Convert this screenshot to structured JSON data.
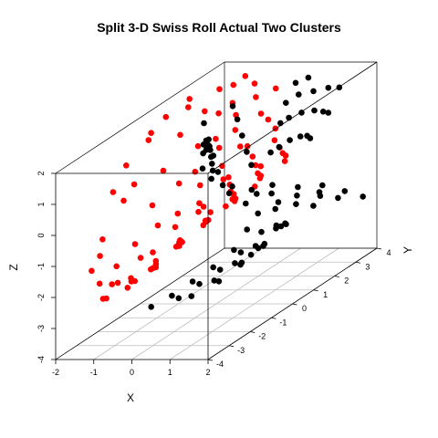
{
  "chart_data": {
    "type": "scatter",
    "projection": "3d-box",
    "title": "Split 3-D Swiss Roll Actual Two Clusters",
    "xlabel": "X",
    "ylabel": "Y",
    "zlabel": "Z",
    "xlim": [
      -2,
      2
    ],
    "ylim": [
      -4,
      4
    ],
    "zlim": [
      -4,
      2
    ],
    "x_ticks": [
      "-2",
      "-1",
      "0",
      "1",
      "2"
    ],
    "y_ticks": [
      "-4",
      "-3",
      "-2",
      "-1",
      "0",
      "1",
      "2",
      "3",
      "4"
    ],
    "z_ticks": [
      "-4",
      "-3",
      "-2",
      "-1",
      "0",
      "1",
      "2"
    ],
    "grid": "floor (x-y plane)",
    "legend": "none",
    "colors": {
      "cluster_1": "#ff0000",
      "cluster_2": "#000000",
      "box": "#000000",
      "grid": "#bebebe"
    },
    "series": [
      {
        "color": "#ff0000",
        "points": [
          [
            -1.6,
            -1.5,
            0.0
          ],
          [
            -1.6,
            -2.5,
            -0.8
          ],
          [
            -1.5,
            -3.2,
            -1.5
          ],
          [
            -1.6,
            -2.0,
            0.5
          ],
          [
            -1.7,
            -1.2,
            1.0
          ],
          [
            -1.5,
            -0.5,
            1.5
          ],
          [
            -1.6,
            0.5,
            1.8
          ],
          [
            -1.4,
            1.2,
            1.8
          ],
          [
            -1.5,
            -2.8,
            -1.2
          ],
          [
            -1.6,
            -1.0,
            0.3
          ],
          [
            -1.6,
            -0.2,
            1.6
          ],
          [
            -1.7,
            1.8,
            1.8
          ],
          [
            -1.4,
            -3.0,
            -2.0
          ],
          [
            -1.4,
            -2.2,
            -1.8
          ],
          [
            -1.3,
            -1.5,
            -1.4
          ],
          [
            -1.4,
            -0.5,
            -0.6
          ],
          [
            -1.5,
            0.2,
            0.2
          ],
          [
            -1.5,
            1.0,
            1.0
          ],
          [
            -1.3,
            1.8,
            1.4
          ],
          [
            -1.3,
            2.5,
            1.8
          ],
          [
            -1.2,
            -3.2,
            -2.4
          ],
          [
            -1.2,
            -2.5,
            -2.2
          ],
          [
            -1.1,
            -1.6,
            -1.8
          ],
          [
            -1.2,
            -0.6,
            -1.2
          ],
          [
            -1.2,
            0.4,
            -0.3
          ],
          [
            -1.2,
            1.3,
            0.5
          ],
          [
            -1.1,
            2.1,
            1.2
          ],
          [
            -1.1,
            2.8,
            1.8
          ],
          [
            -1.0,
            -3.4,
            -2.3
          ],
          [
            -0.9,
            -2.4,
            -2.2
          ],
          [
            -1.0,
            -1.2,
            -1.8
          ],
          [
            -0.9,
            -0.2,
            -1.0
          ],
          [
            -1.0,
            0.8,
            -0.1
          ],
          [
            -0.9,
            1.6,
            0.6
          ],
          [
            -0.9,
            2.4,
            1.4
          ],
          [
            -0.9,
            3.0,
            2.0
          ],
          [
            -0.8,
            -3.5,
            -1.8
          ],
          [
            -0.7,
            -2.6,
            -2.1
          ],
          [
            -0.7,
            -1.6,
            -1.9
          ],
          [
            -0.8,
            -0.5,
            -1.3
          ],
          [
            -0.7,
            0.5,
            -0.4
          ],
          [
            -0.7,
            1.4,
            0.4
          ],
          [
            -0.7,
            2.2,
            1.1
          ],
          [
            -0.6,
            2.9,
            1.8
          ],
          [
            -0.5,
            -3.3,
            -2.0
          ],
          [
            -0.5,
            -2.2,
            -1.9
          ],
          [
            -0.4,
            -1.0,
            -1.5
          ],
          [
            -0.5,
            0.1,
            -0.8
          ],
          [
            -0.4,
            1.0,
            0.0
          ],
          [
            -0.5,
            1.8,
            0.8
          ],
          [
            -0.4,
            2.6,
            1.5
          ],
          [
            -0.3,
            -3.5,
            -1.6
          ],
          [
            -0.2,
            -2.5,
            -1.7
          ],
          [
            -0.2,
            -1.4,
            -1.4
          ],
          [
            -0.3,
            -0.3,
            -0.9
          ],
          [
            -0.2,
            0.7,
            -0.3
          ],
          [
            -0.2,
            1.5,
            0.4
          ],
          [
            -0.1,
            2.3,
            1.1
          ],
          [
            -0.1,
            3.0,
            1.6
          ],
          [
            0.0,
            -3.0,
            -1.5
          ],
          [
            0.1,
            -1.8,
            -1.2
          ],
          [
            0.0,
            -0.6,
            -0.6
          ],
          [
            0.1,
            0.4,
            -0.1
          ],
          [
            0.1,
            1.3,
            0.5
          ],
          [
            0.2,
            2.1,
            1.0
          ],
          [
            0.3,
            -3.4,
            -1.2
          ],
          [
            0.3,
            -2.2,
            -1.0
          ],
          [
            0.4,
            -1.0,
            -0.6
          ],
          [
            0.3,
            0.1,
            -0.2
          ],
          [
            0.4,
            1.0,
            0.3
          ],
          [
            0.5,
            1.9,
            0.8
          ],
          [
            0.5,
            -2.8,
            -0.9
          ],
          [
            0.6,
            -1.6,
            -0.6
          ],
          [
            0.6,
            -0.4,
            -0.2
          ],
          [
            0.7,
            0.6,
            0.2
          ],
          [
            0.7,
            1.5,
            0.6
          ],
          [
            0.8,
            -3.2,
            -0.7
          ],
          [
            0.9,
            -2.0,
            -0.4
          ],
          [
            0.9,
            -0.8,
            -0.1
          ],
          [
            1.0,
            0.3,
            0.3
          ],
          [
            1.0,
            1.2,
            0.5
          ],
          [
            1.1,
            -2.6,
            -0.3
          ],
          [
            1.2,
            -1.4,
            0.0
          ],
          [
            1.2,
            -0.2,
            0.3
          ],
          [
            1.3,
            0.8,
            0.5
          ],
          [
            1.4,
            -3.0,
            0.0
          ],
          [
            1.5,
            -1.8,
            0.2
          ],
          [
            1.5,
            -0.6,
            0.4
          ],
          [
            1.6,
            0.4,
            0.6
          ],
          [
            1.7,
            -2.2,
            0.3
          ],
          [
            1.7,
            -1.0,
            0.5
          ],
          [
            1.8,
            0.0,
            0.6
          ],
          [
            1.8,
            -2.8,
            0.4
          ],
          [
            1.9,
            -1.6,
            0.5
          ]
        ]
      },
      {
        "color": "#000000",
        "points": [
          [
            -1.1,
            2.6,
            -1.6
          ],
          [
            -1.0,
            3.2,
            -2.2
          ],
          [
            -0.9,
            3.6,
            -2.7
          ],
          [
            -0.8,
            2.2,
            -1.2
          ],
          [
            -0.6,
            3.0,
            -1.8
          ],
          [
            -0.5,
            3.7,
            -2.6
          ],
          [
            -0.4,
            2.4,
            -1.4
          ],
          [
            -0.2,
            3.3,
            -2.2
          ],
          [
            -0.1,
            2.8,
            -1.7
          ],
          [
            0.1,
            3.6,
            -2.4
          ],
          [
            0.2,
            2.3,
            -1.2
          ],
          [
            0.4,
            3.1,
            -1.9
          ],
          [
            0.5,
            3.7,
            -2.5
          ],
          [
            0.7,
            2.6,
            -1.4
          ],
          [
            0.9,
            3.3,
            -2.0
          ],
          [
            1.1,
            2.9,
            -1.7
          ],
          [
            1.2,
            3.6,
            -2.2
          ],
          [
            1.4,
            2.5,
            -1.3
          ],
          [
            1.6,
            3.2,
            -1.8
          ],
          [
            1.8,
            3.7,
            -2.2
          ],
          [
            -0.6,
            -2.0,
            -3.2
          ],
          [
            -0.5,
            -1.2,
            -3.2
          ],
          [
            -0.4,
            -0.4,
            -3.1
          ],
          [
            -0.3,
            0.4,
            -3.0
          ],
          [
            -0.2,
            1.2,
            -2.8
          ],
          [
            -0.3,
            2.0,
            -2.5
          ],
          [
            -0.1,
            -1.6,
            -3.1
          ],
          [
            0.0,
            -0.8,
            -3.0
          ],
          [
            0.1,
            0.0,
            -2.9
          ],
          [
            0.2,
            0.8,
            -2.7
          ],
          [
            0.3,
            1.6,
            -2.4
          ],
          [
            0.4,
            -1.9,
            -2.9
          ],
          [
            0.5,
            -1.0,
            -2.8
          ],
          [
            0.6,
            -0.2,
            -2.6
          ],
          [
            0.7,
            0.6,
            -2.4
          ],
          [
            0.8,
            1.4,
            -2.1
          ],
          [
            0.9,
            -1.5,
            -2.6
          ],
          [
            1.0,
            -0.6,
            -2.4
          ],
          [
            1.1,
            0.3,
            -2.2
          ],
          [
            1.2,
            1.1,
            -1.9
          ],
          [
            1.3,
            -1.2,
            -2.2
          ],
          [
            1.4,
            -0.3,
            -2.0
          ],
          [
            1.5,
            0.6,
            -1.7
          ],
          [
            1.6,
            -0.9,
            -1.8
          ],
          [
            1.7,
            0.0,
            -1.5
          ],
          [
            1.8,
            -1.6,
            -1.7
          ],
          [
            1.9,
            -0.6,
            -1.3
          ],
          [
            -0.4,
            3.3,
            -0.6
          ],
          [
            -0.2,
            3.4,
            0.3
          ],
          [
            0.0,
            3.3,
            1.0
          ],
          [
            0.2,
            3.4,
            1.6
          ],
          [
            0.1,
            2.8,
            -0.2
          ],
          [
            0.3,
            2.9,
            0.7
          ],
          [
            0.5,
            3.0,
            1.4
          ],
          [
            0.7,
            3.1,
            1.9
          ],
          [
            0.6,
            2.4,
            0.2
          ],
          [
            0.8,
            2.6,
            1.0
          ],
          [
            1.0,
            2.8,
            1.6
          ],
          [
            1.1,
            2.0,
            0.5
          ],
          [
            1.3,
            2.3,
            1.2
          ],
          [
            1.5,
            2.6,
            1.8
          ],
          [
            1.5,
            1.6,
            0.7
          ],
          [
            1.7,
            2.0,
            1.3
          ],
          [
            1.9,
            2.4,
            1.9
          ],
          [
            1.8,
            1.2,
            0.8
          ],
          [
            2.0,
            1.7,
            1.4
          ],
          [
            -0.6,
            0.5,
            1.6
          ],
          [
            -0.4,
            1.5,
            1.7
          ],
          [
            -0.2,
            0.0,
            1.3
          ],
          [
            0.0,
            1.0,
            1.5
          ],
          [
            0.2,
            -0.5,
            1.0
          ],
          [
            0.4,
            0.5,
            1.2
          ],
          [
            0.6,
            -1.0,
            0.7
          ],
          [
            0.8,
            0.0,
            0.9
          ],
          [
            1.0,
            -1.5,
            0.5
          ],
          [
            1.2,
            -0.5,
            0.7
          ],
          [
            -1.4,
            2.3,
            -1.0
          ],
          [
            -1.2,
            2.0,
            -0.6
          ],
          [
            -1.0,
            1.6,
            -0.2
          ],
          [
            -0.8,
            1.2,
            0.2
          ],
          [
            -0.6,
            0.8,
            0.6
          ],
          [
            -0.4,
            0.4,
            0.9
          ],
          [
            -0.2,
            0.0,
            1.1
          ],
          [
            0.0,
            -0.4,
            1.3
          ],
          [
            0.2,
            -0.8,
            1.4
          ],
          [
            0.4,
            -1.2,
            1.5
          ],
          [
            -1.3,
            1.7,
            -0.4
          ],
          [
            -0.9,
            1.0,
            0.4
          ],
          [
            -0.5,
            0.3,
            1.0
          ],
          [
            -0.1,
            -0.3,
            1.4
          ],
          [
            0.3,
            -1.0,
            1.6
          ],
          [
            0.7,
            -1.6,
            1.7
          ]
        ]
      }
    ]
  }
}
